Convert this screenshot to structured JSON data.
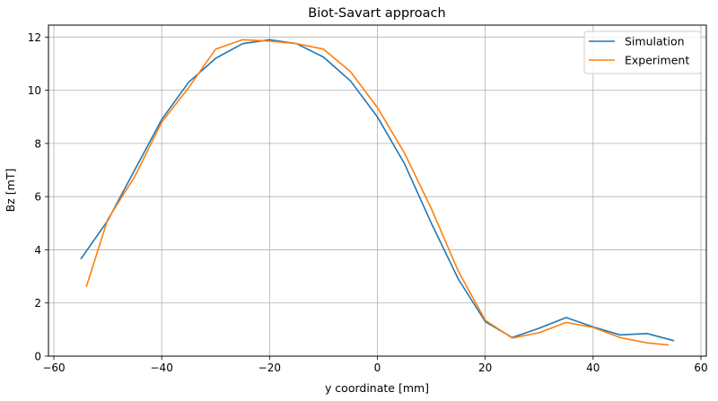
{
  "chart_data": {
    "type": "line",
    "title": "Biot-Savart approach",
    "xlabel": "y coordinate [mm]",
    "ylabel": "Bz [mT]",
    "xlim": [
      -61,
      61
    ],
    "ylim": [
      0,
      12.45
    ],
    "xticks": [
      -60,
      -40,
      -20,
      0,
      20,
      40,
      60
    ],
    "yticks": [
      0,
      2,
      4,
      6,
      8,
      10,
      12
    ],
    "xtick_labels": [
      "−60",
      "−40",
      "−20",
      "0",
      "20",
      "40",
      "60"
    ],
    "ytick_labels": [
      "0",
      "2",
      "4",
      "6",
      "8",
      "10",
      "12"
    ],
    "grid": true,
    "legend_position": "upper right",
    "series": [
      {
        "name": "Simulation",
        "color": "#1f77b4",
        "x": [
          -55,
          -50,
          -45,
          -40,
          -35,
          -30,
          -25,
          -20,
          -15,
          -10,
          -5,
          0,
          5,
          10,
          15,
          20,
          25,
          30,
          35,
          40,
          45,
          50,
          55
        ],
        "y": [
          3.65,
          5.1,
          7.0,
          8.9,
          10.3,
          11.2,
          11.75,
          11.9,
          11.75,
          11.25,
          10.35,
          9.0,
          7.25,
          5.0,
          2.9,
          1.3,
          0.7,
          1.05,
          1.45,
          1.1,
          0.8,
          0.85,
          0.58
        ]
      },
      {
        "name": "Experiment",
        "color": "#ff7f0e",
        "x": [
          -54,
          -50,
          -45,
          -40,
          -35,
          -30,
          -25,
          -20,
          -15,
          -10,
          -5,
          0,
          5,
          10,
          15,
          20,
          25,
          30,
          35,
          40,
          45,
          50,
          54
        ],
        "y": [
          2.6,
          5.15,
          6.75,
          8.8,
          10.1,
          11.55,
          11.9,
          11.85,
          11.75,
          11.55,
          10.7,
          9.35,
          7.65,
          5.55,
          3.2,
          1.35,
          0.68,
          0.88,
          1.27,
          1.08,
          0.7,
          0.5,
          0.42
        ]
      }
    ]
  },
  "legend": {
    "items": [
      {
        "label": "Simulation",
        "color": "#1f77b4"
      },
      {
        "label": "Experiment",
        "color": "#ff7f0e"
      }
    ]
  }
}
